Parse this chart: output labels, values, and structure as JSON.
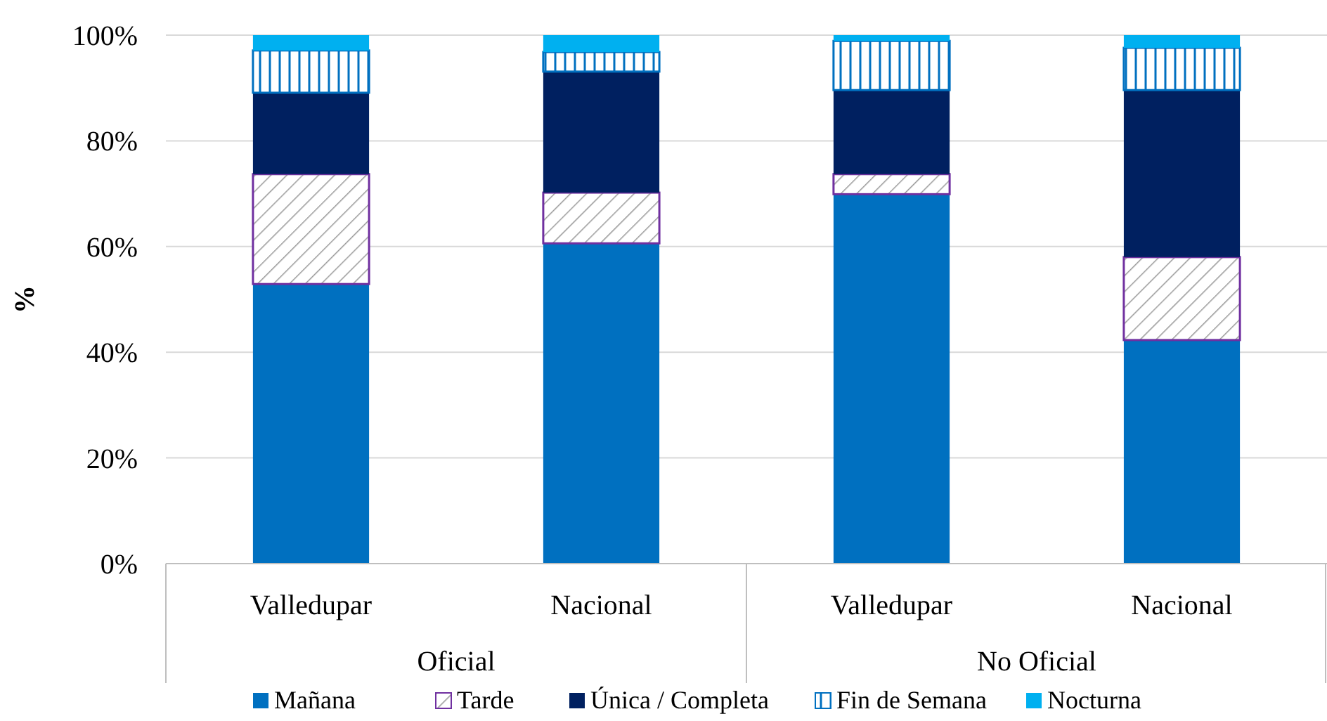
{
  "chart_data": {
    "type": "bar",
    "stacked": true,
    "ylabel": "%",
    "categories": [
      "Valledupar",
      "Nacional",
      "Valledupar",
      "Nacional"
    ],
    "annotations": [
      "Oficial",
      "No Oficial"
    ],
    "ylim": [
      0,
      100
    ],
    "yticks": [
      {
        "value": 0,
        "label": "0%"
      },
      {
        "value": 20,
        "label": "20%"
      },
      {
        "value": 40,
        "label": "40%"
      },
      {
        "value": 60,
        "label": "60%"
      },
      {
        "value": 80,
        "label": "80%"
      },
      {
        "value": 100,
        "label": "100%"
      }
    ],
    "grid": "y",
    "legend": "bottom",
    "series": [
      {
        "name": "Mañana",
        "color": "#0070c0",
        "values": [
          52.9,
          60.6,
          69.9,
          42.3
        ]
      },
      {
        "name": "Tarde",
        "color": "#7030a0",
        "values": [
          20.8,
          9.6,
          3.8,
          15.7
        ]
      },
      {
        "name": "Única / Completa",
        "color": "#002060",
        "values": [
          15.4,
          22.9,
          15.9,
          31.6
        ]
      },
      {
        "name": "Fin de Semana",
        "color": "#0070c0",
        "values": [
          8.0,
          3.7,
          9.3,
          8.0
        ]
      },
      {
        "name": "Nocturna",
        "color": "#00b0f0",
        "values": [
          2.9,
          3.2,
          1.1,
          2.4
        ]
      }
    ]
  }
}
